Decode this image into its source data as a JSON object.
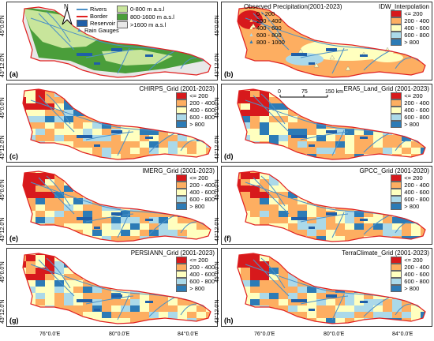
{
  "colors": {
    "c1": "#d7191c",
    "c2": "#fdae61",
    "c3": "#ffffbf",
    "c4": "#abd9e9",
    "c5": "#2c7bb6",
    "river": "#4a90c8",
    "border": "#e02020",
    "topo1": "#c8e59b",
    "topo2": "#4a9e3a",
    "topo3": "#e8e8e8"
  },
  "panels": [
    {
      "label": "(a)",
      "title": "",
      "kind": "topo"
    },
    {
      "label": "(b)",
      "title": "IDW_Interpolation",
      "kind": "idw"
    },
    {
      "label": "(c)",
      "title": "CHIRPS_Grid (2001-2023)",
      "kind": "grid",
      "seed": 3
    },
    {
      "label": "(d)",
      "title": "ERA5_Land_Grid (2001-2023)",
      "kind": "grid",
      "seed": 7
    },
    {
      "label": "(e)",
      "title": "IMERG_Grid (2001-2023)",
      "kind": "grid",
      "seed": 11
    },
    {
      "label": "(f)",
      "title": "GPCC_Grid (2001-2020)",
      "kind": "grid",
      "seed": 13
    },
    {
      "label": "(g)",
      "title": "PERSIANN_Grid (2001-2023)",
      "kind": "grid",
      "seed": 17
    },
    {
      "label": "(h)",
      "title": "TerraClimate_Grid (2001-2023)",
      "kind": "grid",
      "seed": 19
    }
  ],
  "legend_classes": [
    "<= 200",
    "200 - 400",
    "400 - 600",
    "600 - 800",
    "> 800"
  ],
  "legend_a_items": [
    "Rivers",
    "Border",
    "Reservoir",
    "Rain Gauges"
  ],
  "legend_topo": [
    "0-800 m a.s.l",
    "800-1600 m a.s.l",
    ">1600 m a.s.l"
  ],
  "legend_b_title": "Observed Precipitation(2001-2023)",
  "legend_b_items": [
    "0 - 200",
    "200 - 400",
    "400 - 600",
    "600 - 800",
    "800 - 1000"
  ],
  "scale_labels": [
    "0",
    "75",
    "150 km"
  ],
  "lat_labels": [
    "45°0.0'N",
    "43°12.0'N"
  ],
  "lon_labels": [
    "76°0.0'E",
    "80°0.0'E",
    "84°0.0'E"
  ],
  "north_label": "N"
}
